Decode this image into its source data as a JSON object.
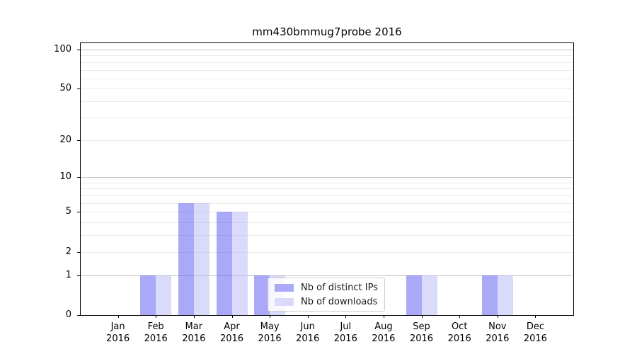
{
  "title": "mm430bmmug7probe 2016",
  "colors": {
    "distinct_ips_bar": "rgba(84,84,241,0.5)",
    "downloads_bar": "rgba(181,181,245,0.5)",
    "distinct_ips_solid": "#a9a9f8",
    "downloads_solid": "#dadafa",
    "grid_major": "#c2c2c2",
    "grid_minor": "#eaeaea",
    "axis": "#000000"
  },
  "chart_data": {
    "type": "bar",
    "title": "mm430bmmug7probe 2016",
    "xlabel": "",
    "ylabel": "",
    "categories": [
      {
        "month": "Jan",
        "year": "2016"
      },
      {
        "month": "Feb",
        "year": "2016"
      },
      {
        "month": "Mar",
        "year": "2016"
      },
      {
        "month": "Apr",
        "year": "2016"
      },
      {
        "month": "May",
        "year": "2016"
      },
      {
        "month": "Jun",
        "year": "2016"
      },
      {
        "month": "Jul",
        "year": "2016"
      },
      {
        "month": "Aug",
        "year": "2016"
      },
      {
        "month": "Sep",
        "year": "2016"
      },
      {
        "month": "Oct",
        "year": "2016"
      },
      {
        "month": "Nov",
        "year": "2016"
      },
      {
        "month": "Dec",
        "year": "2016"
      }
    ],
    "series": [
      {
        "name": "Nb of distinct IPs",
        "color_key": "distinct_ips_bar",
        "values": [
          0,
          1,
          6,
          5,
          1,
          0,
          0,
          0,
          1,
          0,
          1,
          0
        ]
      },
      {
        "name": "Nb of downloads",
        "color_key": "downloads_bar",
        "values": [
          0,
          1,
          6,
          5,
          1,
          0,
          0,
          0,
          1,
          0,
          1,
          0
        ]
      }
    ],
    "y_axis": {
      "scale": "log1p",
      "ylim": [
        0,
        113
      ],
      "tick_values": [
        0,
        1,
        2,
        5,
        10,
        20,
        50,
        100
      ],
      "major_grid_values": [
        1,
        10,
        100
      ],
      "minor_grid_values": [
        2,
        3,
        4,
        5,
        6,
        7,
        8,
        9,
        20,
        30,
        40,
        50,
        60,
        70,
        80,
        90
      ]
    },
    "grid": true,
    "legend_position": "lower center-left, inside plot"
  }
}
